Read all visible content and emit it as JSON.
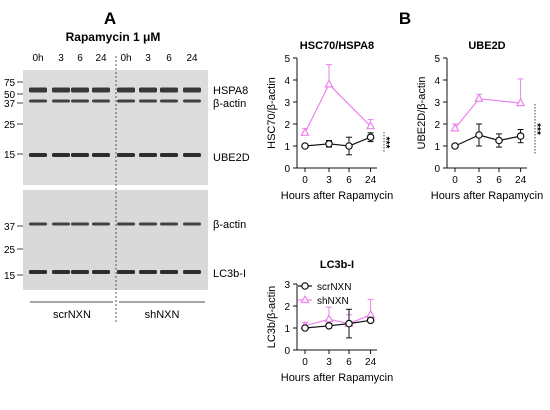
{
  "panel_labels": {
    "a": "A",
    "b": "B"
  },
  "blot": {
    "treatment": "Rapamycin 1 μM",
    "lanes": [
      "0h",
      "3",
      "6",
      "24",
      "0h",
      "3",
      "6",
      "24"
    ],
    "mw_upper": [
      "75",
      "50",
      "37",
      "25",
      "15"
    ],
    "mw_lower": [
      "37",
      "25",
      "15"
    ],
    "bands_upper": [
      "HSPA8",
      "β-actin",
      "UBE2D"
    ],
    "bands_lower": [
      "β-actin",
      "LC3b-I"
    ],
    "groups": [
      "scrNXN",
      "shNXN"
    ]
  },
  "colors": {
    "scr": "#111111",
    "sh": "#ee82ee",
    "membrane": "#dcdcdc"
  },
  "chart_data": [
    {
      "type": "line",
      "title": "HSC70/HSPA8",
      "xlabel": "Hours after Rapamycin",
      "ylabel": "HSC70/β-actin",
      "x": [
        0,
        3,
        6,
        24
      ],
      "x_ticks": [
        "0",
        "3",
        "6",
        "24"
      ],
      "ylim": [
        0,
        5
      ],
      "y_ticks": [
        "0",
        "1",
        "2",
        "3",
        "4",
        "5"
      ],
      "significance": "***",
      "series": [
        {
          "name": "scrNXN",
          "values": [
            1.0,
            1.1,
            1.0,
            1.4
          ],
          "errors": [
            0,
            0.15,
            0.4,
            0.2
          ],
          "marker": "circle",
          "color": "#111111"
        },
        {
          "name": "shNXN",
          "values": [
            1.6,
            3.8,
            null,
            1.9
          ],
          "errors": [
            0.2,
            0.9,
            null,
            0.3
          ],
          "marker": "triangle",
          "color": "#ee82ee"
        }
      ]
    },
    {
      "type": "line",
      "title": "UBE2D",
      "xlabel": "Hours after Rapamycin",
      "ylabel": "UBE2D/β-actin",
      "x": [
        0,
        3,
        6,
        24
      ],
      "x_ticks": [
        "0",
        "3",
        "6",
        "24"
      ],
      "ylim": [
        0,
        5
      ],
      "y_ticks": [
        "0",
        "1",
        "2",
        "3",
        "4",
        "5"
      ],
      "significance": "***",
      "series": [
        {
          "name": "scrNXN",
          "values": [
            1.0,
            1.5,
            1.25,
            1.45
          ],
          "errors": [
            0,
            0.5,
            0.3,
            0.3
          ],
          "marker": "circle",
          "color": "#111111"
        },
        {
          "name": "shNXN",
          "values": [
            1.8,
            3.15,
            null,
            2.95
          ],
          "errors": [
            0.2,
            0.2,
            null,
            1.1
          ],
          "marker": "triangle",
          "color": "#ee82ee"
        }
      ]
    },
    {
      "type": "line",
      "title": "LC3b-I",
      "xlabel": "Hours after Rapamycin",
      "ylabel": "LC3b/β-actin",
      "x": [
        0,
        3,
        6,
        24
      ],
      "x_ticks": [
        "0",
        "3",
        "6",
        "24"
      ],
      "ylim": [
        0,
        3
      ],
      "y_ticks": [
        "0",
        "1",
        "2",
        "3"
      ],
      "legend": {
        "placement": "top-left",
        "entries": [
          "scrNXN",
          "shNXN"
        ]
      },
      "series": [
        {
          "name": "scrNXN",
          "values": [
            1.0,
            1.1,
            1.2,
            1.35
          ],
          "errors": [
            0.05,
            0.1,
            0.65,
            0.1
          ],
          "marker": "circle",
          "color": "#111111"
        },
        {
          "name": "shNXN",
          "values": [
            1.1,
            1.4,
            1.2,
            1.6
          ],
          "errors": [
            0.15,
            0.55,
            0.4,
            0.7
          ],
          "marker": "triangle",
          "color": "#ee82ee"
        }
      ]
    }
  ]
}
